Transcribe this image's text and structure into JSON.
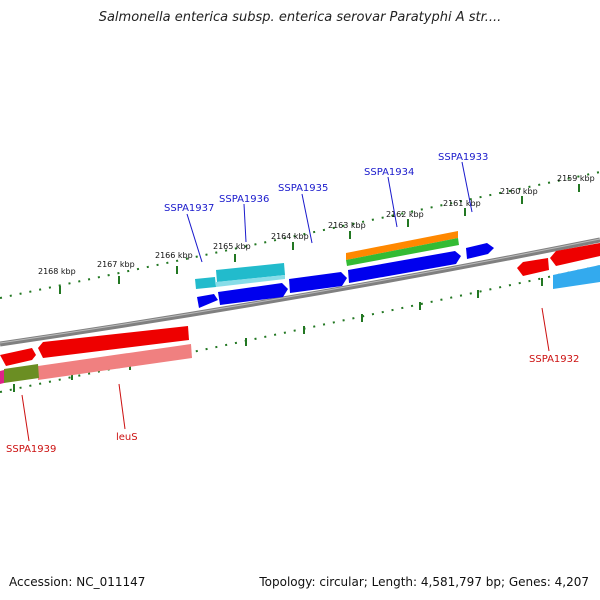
{
  "title": "Salmonella enterica subsp. enterica serovar Paratyphi A str....",
  "footer": {
    "accession": "Accession: NC_011147",
    "summary": "Topology: circular; Length: 4,581,797 bp; Genes: 4,207"
  },
  "ticks_upper": [
    "2168 kbp",
    "2167 kbp",
    "2166 kbp",
    "2165 kbp",
    "2164 kbp",
    "2163 kbp",
    "2162 kbp",
    "2161 kbp",
    "2160 kbp",
    "2159 kbp"
  ],
  "genes_upper_labels": [
    "SSPA1937",
    "SSPA1936",
    "SSPA1935",
    "SSPA1934",
    "SSPA1933"
  ],
  "genes_lower_labels": [
    "SSPA1939",
    "leuS",
    "SSPA1932"
  ],
  "colors": {
    "forward_gene": "#0000ee",
    "reverse_gene": "#ee0000",
    "cyan_feature": "#22bbcc",
    "orange_feature": "#ff8800",
    "green_feature": "#33bb33",
    "pink_feature": "#f08080",
    "olive_feature": "#6b8e23",
    "sky_feature": "#33aaee",
    "backbone": "#888888",
    "tick_color": "#227722"
  }
}
